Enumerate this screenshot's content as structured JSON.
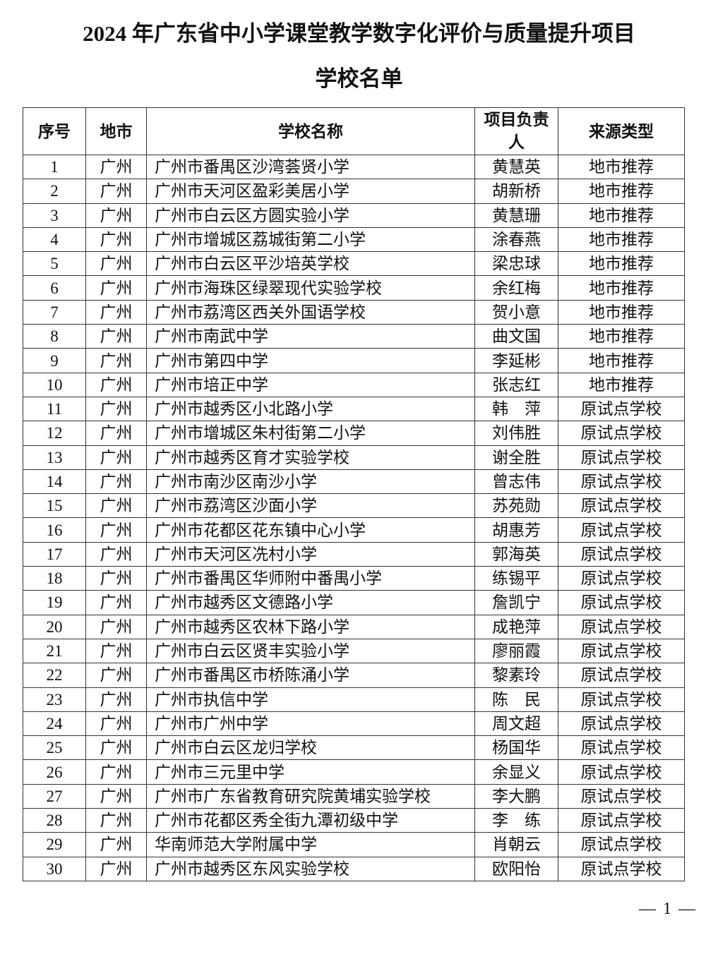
{
  "title": "2024 年广东省中小学课堂教学数字化评价与质量提升项目",
  "subtitle": "学校名单",
  "table": {
    "headers": [
      "序号",
      "地市",
      "学校名称",
      "项目负责人",
      "来源类型"
    ],
    "rows": [
      [
        "1",
        "广州",
        "广州市番禺区沙湾荟贤小学",
        "黄慧英",
        "地市推荐"
      ],
      [
        "2",
        "广州",
        "广州市天河区盈彩美居小学",
        "胡新桥",
        "地市推荐"
      ],
      [
        "3",
        "广州",
        "广州市白云区方圆实验小学",
        "黄慧珊",
        "地市推荐"
      ],
      [
        "4",
        "广州",
        "广州市增城区荔城街第二小学",
        "涂春燕",
        "地市推荐"
      ],
      [
        "5",
        "广州",
        "广州市白云区平沙培英学校",
        "梁忠球",
        "地市推荐"
      ],
      [
        "6",
        "广州",
        "广州市海珠区绿翠现代实验学校",
        "余红梅",
        "地市推荐"
      ],
      [
        "7",
        "广州",
        "广州市荔湾区西关外国语学校",
        "贺小意",
        "地市推荐"
      ],
      [
        "8",
        "广州",
        "广州市南武中学",
        "曲文国",
        "地市推荐"
      ],
      [
        "9",
        "广州",
        "广州市第四中学",
        "李延彬",
        "地市推荐"
      ],
      [
        "10",
        "广州",
        "广州市培正中学",
        "张志红",
        "地市推荐"
      ],
      [
        "11",
        "广州",
        "广州市越秀区小北路小学",
        "韩　萍",
        "原试点学校"
      ],
      [
        "12",
        "广州",
        "广州市增城区朱村街第二小学",
        "刘伟胜",
        "原试点学校"
      ],
      [
        "13",
        "广州",
        "广州市越秀区育才实验学校",
        "谢全胜",
        "原试点学校"
      ],
      [
        "14",
        "广州",
        "广州市南沙区南沙小学",
        "曾志伟",
        "原试点学校"
      ],
      [
        "15",
        "广州",
        "广州市荔湾区沙面小学",
        "苏苑勋",
        "原试点学校"
      ],
      [
        "16",
        "广州",
        "广州市花都区花东镇中心小学",
        "胡惠芳",
        "原试点学校"
      ],
      [
        "17",
        "广州",
        "广州市天河区冼村小学",
        "郭海英",
        "原试点学校"
      ],
      [
        "18",
        "广州",
        "广州市番禺区华师附中番禺小学",
        "练锡平",
        "原试点学校"
      ],
      [
        "19",
        "广州",
        "广州市越秀区文德路小学",
        "詹凯宁",
        "原试点学校"
      ],
      [
        "20",
        "广州",
        "广州市越秀区农林下路小学",
        "成艳萍",
        "原试点学校"
      ],
      [
        "21",
        "广州",
        "广州市白云区贤丰实验小学",
        "廖丽霞",
        "原试点学校"
      ],
      [
        "22",
        "广州",
        "广州市番禺区市桥陈涌小学",
        "黎素玲",
        "原试点学校"
      ],
      [
        "23",
        "广州",
        "广州市执信中学",
        "陈　民",
        "原试点学校"
      ],
      [
        "24",
        "广州",
        "广州市广州中学",
        "周文超",
        "原试点学校"
      ],
      [
        "25",
        "广州",
        "广州市白云区龙归学校",
        "杨国华",
        "原试点学校"
      ],
      [
        "26",
        "广州",
        "广州市三元里中学",
        "余显义",
        "原试点学校"
      ],
      [
        "27",
        "广州",
        "广州市广东省教育研究院黄埔实验学校",
        "李大鹏",
        "原试点学校"
      ],
      [
        "28",
        "广州",
        "广州市花都区秀全街九潭初级中学",
        "李　练",
        "原试点学校"
      ],
      [
        "29",
        "广州",
        "华南师范大学附属中学",
        "肖朝云",
        "原试点学校"
      ],
      [
        "30",
        "广州",
        "广州市越秀区东风实验学校",
        "欧阳怡",
        "原试点学校"
      ]
    ]
  },
  "page_number": "— 1 —"
}
